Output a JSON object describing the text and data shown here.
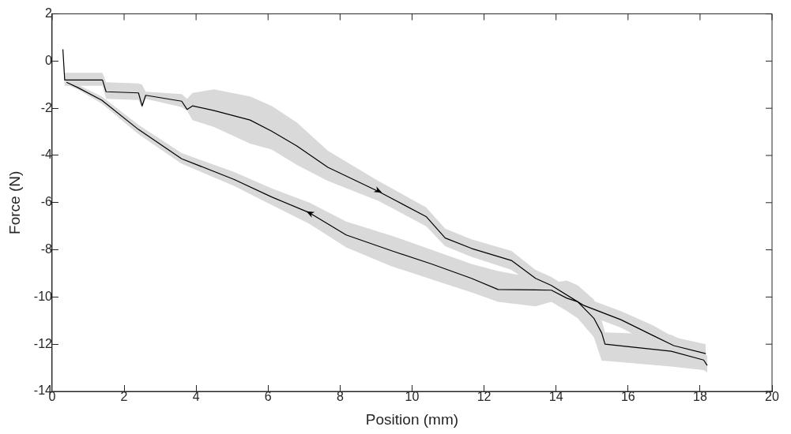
{
  "chart_data": {
    "type": "line",
    "xlabel": "Position (mm)",
    "ylabel": "Force (N)",
    "xlim": [
      0,
      20
    ],
    "xticks": [
      0,
      2,
      4,
      6,
      8,
      10,
      12,
      14,
      16,
      18,
      20
    ],
    "ylim": [
      -14,
      2
    ],
    "yticks": [
      -14,
      -12,
      -10,
      -8,
      -6,
      -4,
      -2,
      0,
      2
    ],
    "grid": false,
    "legend": false,
    "marker": "none",
    "line_style": "solid",
    "series": [
      {
        "color": "#000000",
        "x": [
          0.3,
          0.35,
          1.4,
          1.5,
          2.4,
          2.5,
          2.6,
          3.6,
          3.75,
          3.9,
          4.5,
          5.5,
          6.1,
          6.8,
          7.66,
          9.06,
          10.39,
          10.92,
          11.65,
          12.76,
          13.43,
          13.87,
          14.76,
          15.8,
          16.69,
          17.27,
          18.16
        ],
        "values": [
          0.5,
          -0.8,
          -0.8,
          -1.3,
          -1.35,
          -1.9,
          -1.45,
          -1.7,
          -2.05,
          -1.9,
          -2.1,
          -2.5,
          -2.97,
          -3.6,
          -4.5,
          -5.52,
          -6.59,
          -7.5,
          -7.94,
          -8.45,
          -9.21,
          -9.51,
          -10.35,
          -10.96,
          -11.63,
          -12.06,
          -12.4
        ],
        "lower": [
          0.3,
          -1.05,
          -1.05,
          -1.6,
          -1.65,
          -2.0,
          -1.6,
          -1.95,
          -2.1,
          -2.5,
          -2.8,
          -3.5,
          -3.75,
          -4.4,
          -5.08,
          -5.92,
          -7.0,
          -7.85,
          -8.3,
          -8.85,
          -9.55,
          -9.85,
          -10.7,
          -11.3,
          -12.0,
          -12.4,
          -12.9
        ],
        "upper": [
          0.6,
          -0.5,
          -0.5,
          -0.9,
          -0.95,
          -1.0,
          -1.3,
          -1.4,
          -1.6,
          -1.35,
          -1.2,
          -1.5,
          -1.9,
          -2.6,
          -3.8,
          -5.08,
          -6.2,
          -7.1,
          -7.55,
          -8.05,
          -8.85,
          -9.15,
          -10.0,
          -10.6,
          -11.2,
          -11.7,
          -12.0
        ]
      },
      {
        "color": "#000000",
        "x": [
          18.2,
          18.1,
          17.2,
          15.36,
          15.27,
          15.05,
          14.6,
          14.3,
          13.87,
          13.43,
          12.39,
          11.65,
          10.54,
          9.43,
          8.17,
          7.15,
          6.1,
          5.06,
          3.6,
          2.4,
          1.38,
          0.71,
          0.4
        ],
        "values": [
          -12.9,
          -12.67,
          -12.3,
          -12.0,
          -11.53,
          -10.9,
          -10.2,
          -10.05,
          -9.71,
          -9.7,
          -9.68,
          -9.21,
          -8.6,
          -8.04,
          -7.37,
          -6.43,
          -5.76,
          -5.02,
          -4.14,
          -2.9,
          -1.66,
          -1.12,
          -0.9
        ],
        "lower": [
          -13.2,
          -13.1,
          -12.95,
          -12.7,
          -12.7,
          -11.7,
          -10.9,
          -10.6,
          -10.2,
          -10.4,
          -10.2,
          -9.8,
          -9.25,
          -8.7,
          -7.9,
          -6.9,
          -6.1,
          -5.3,
          -4.35,
          -3.1,
          -1.8,
          -1.2,
          -1.0
        ],
        "upper": [
          -12.5,
          -12.3,
          -11.6,
          -11.5,
          -11.0,
          -10.1,
          -9.5,
          -9.3,
          -9.4,
          -9.2,
          -8.9,
          -8.6,
          -8.0,
          -7.4,
          -6.8,
          -6.0,
          -5.4,
          -4.7,
          -3.9,
          -2.7,
          -1.5,
          -1.0,
          -0.8
        ]
      }
    ]
  }
}
